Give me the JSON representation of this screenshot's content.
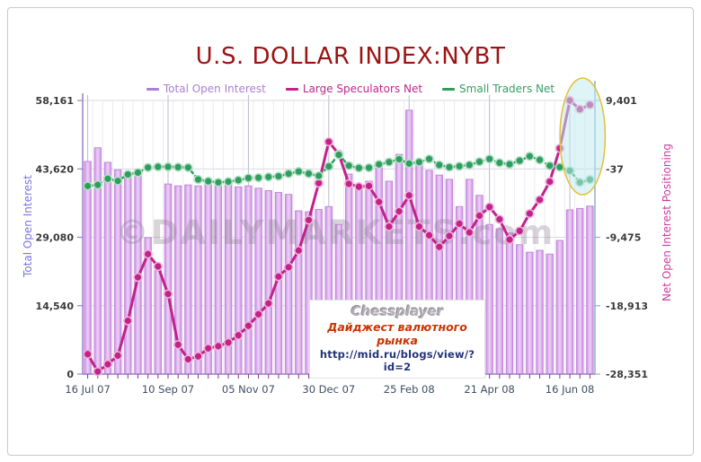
{
  "title": "U.S. DOLLAR INDEX:NYBT",
  "annotations": {
    "watermark": "©DAILYMARKETS.com",
    "source_box": {
      "author": "Chessplayer",
      "subtitle": "Дайджест валютного рынка",
      "url": "http://mid.ru/blogs/view/?id=2"
    }
  },
  "colors": {
    "title": "#9b1313",
    "bar_fill": "#ddb0ef",
    "bar_edge": "#c287d8",
    "large_speculators": "#c2228a",
    "small_traders": "#2e9e5f",
    "left_axis_title": "#7a74dd",
    "right_axis_title": "#cc3d9e",
    "highlight_fill": "#bfe9f0",
    "highlight_stroke": "#e2c135"
  },
  "chart_data": {
    "type": "bar",
    "title": "U.S. DOLLAR INDEX:NYBT",
    "n_points": 51,
    "x_tick_labels": [
      "16 Jul 07",
      "10 Sep 07",
      "05 Nov 07",
      "30 Dec 07",
      "25 Feb 08",
      "21 Apr 08",
      "16 Jun 08"
    ],
    "x_tick_indices": [
      0,
      8,
      16,
      24,
      32,
      40,
      48
    ],
    "grid": true,
    "legend_position": "top",
    "left_axis": {
      "label": "Total Open Interest",
      "min": 0,
      "max": 58161,
      "ticks": [
        "58,161",
        "43,620",
        "29,080",
        "14,540",
        "0"
      ],
      "tick_values": [
        58161,
        43620,
        29080,
        14540,
        0
      ]
    },
    "right_axis": {
      "label": "Net Open Interest Positioning",
      "min": -28351,
      "max": 9401,
      "ticks": [
        "9,401",
        "-37",
        "-9,475",
        "-18,913",
        "-28,351"
      ],
      "tick_values": [
        9401,
        -37,
        -9475,
        -18913,
        -28351
      ]
    },
    "series": [
      {
        "name": "Total Open Interest",
        "type": "bar",
        "axis": "left",
        "color": "#ddb0ef",
        "values": [
          45200,
          48100,
          45000,
          43400,
          42800,
          42300,
          29000,
          22000,
          40400,
          40000,
          40200,
          40000,
          40300,
          40000,
          40200,
          39800,
          40000,
          39500,
          39000,
          38600,
          38200,
          34700,
          34500,
          35000,
          35600,
          31800,
          42500,
          39500,
          41000,
          44000,
          41000,
          46700,
          56100,
          44600,
          43300,
          42300,
          41400,
          35600,
          41400,
          38000,
          31800,
          30900,
          30000,
          27500,
          25900,
          26300,
          25500,
          28400,
          34900,
          35200,
          35700
        ]
      },
      {
        "name": "Large Speculators Net",
        "type": "line",
        "axis": "right",
        "color": "#c2228a",
        "values": [
          -25600,
          -28000,
          -27000,
          -25800,
          -21000,
          -15000,
          -11800,
          -13500,
          -17300,
          -24300,
          -26300,
          -25900,
          -24800,
          -24500,
          -24000,
          -23000,
          -21700,
          -20100,
          -18600,
          -14900,
          -13600,
          -11300,
          -7100,
          -2000,
          3700,
          2000,
          -2100,
          -2500,
          -2400,
          -4600,
          -8000,
          -5900,
          -3700,
          -8000,
          -9200,
          -10800,
          -9300,
          -7600,
          -8800,
          -6500,
          -5300,
          -7000,
          -9800,
          -8600,
          -6200,
          -4300,
          -1800,
          2800,
          9400,
          8200,
          8800
        ]
      },
      {
        "name": "Small Traders Net",
        "type": "line",
        "axis": "right",
        "dashed": true,
        "color": "#2e9e5f",
        "values": [
          -2400,
          -2250,
          -1400,
          -1700,
          -800,
          -550,
          150,
          250,
          250,
          200,
          150,
          -1500,
          -1750,
          -1900,
          -1800,
          -1600,
          -1300,
          -1250,
          -1150,
          -1050,
          -700,
          -400,
          -700,
          -1000,
          300,
          1900,
          400,
          90,
          120,
          580,
          900,
          1300,
          700,
          900,
          1330,
          500,
          200,
          330,
          500,
          950,
          1330,
          800,
          600,
          1100,
          1700,
          1200,
          400,
          200,
          -290,
          -1900,
          -1520
        ]
      }
    ],
    "highlight": {
      "shape": "ellipse",
      "from_index": 48,
      "to_index": 50,
      "fill": "#bfe9f0",
      "stroke": "#e2c135"
    }
  }
}
